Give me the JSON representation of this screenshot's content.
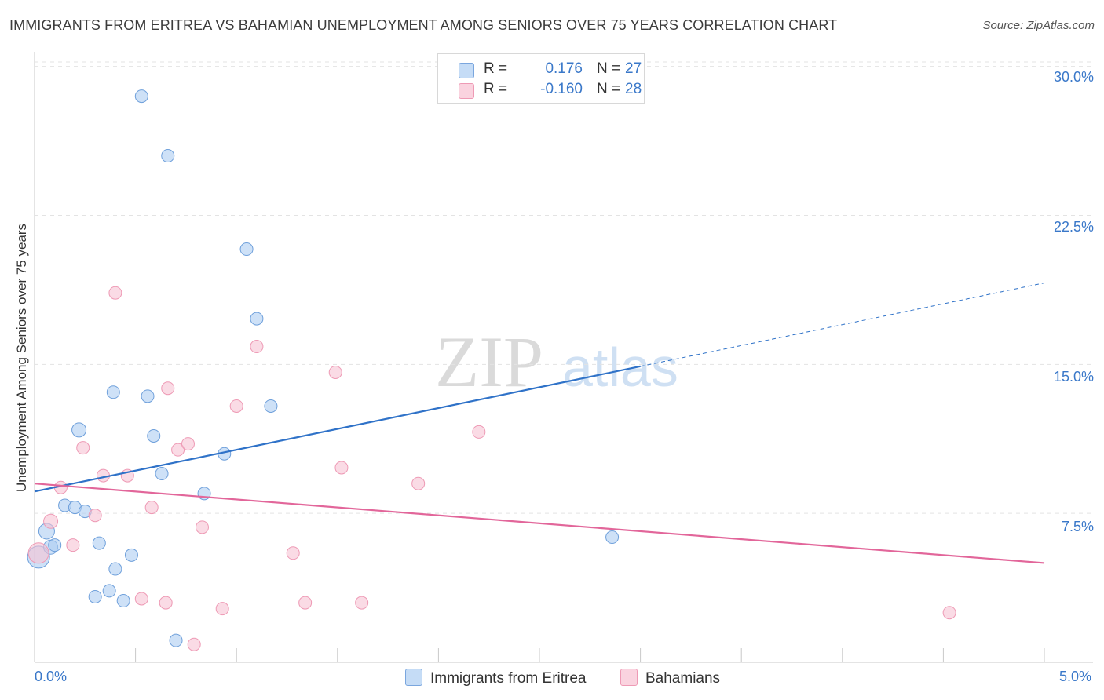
{
  "header": {
    "title": "IMMIGRANTS FROM ERITREA VS BAHAMIAN UNEMPLOYMENT AMONG SENIORS OVER 75 YEARS CORRELATION CHART",
    "source": "Source: ZipAtlas.com"
  },
  "watermark": {
    "zip": "ZIP",
    "atlas": "atlas"
  },
  "legend": {
    "series1": {
      "r_label": "R =",
      "r_value": "0.176",
      "n_label": "N =",
      "n_value": "27",
      "color": "#a8c8f0"
    },
    "series2": {
      "r_label": "R =",
      "r_value": "-0.160",
      "n_label": "N =",
      "n_value": "28",
      "color": "#f5b8cc"
    }
  },
  "bottom_legend": {
    "series1": "Immigrants from Eritrea",
    "series2": "Bahamians"
  },
  "colors": {
    "blue_fill": "#aecdf2",
    "blue_stroke": "#6fa0db",
    "blue_line": "#2f72c8",
    "pink_fill": "#f7c3d3",
    "pink_stroke": "#ee9ab5",
    "pink_line": "#e2669a",
    "grid": "#e3e3e3",
    "axis_text": "#3a78c9"
  },
  "chart_data": {
    "type": "scatter",
    "title": "IMMIGRANTS FROM ERITREA VS BAHAMIAN UNEMPLOYMENT AMONG SENIORS OVER 75 YEARS CORRELATION CHART",
    "xlabel": "",
    "ylabel": "Unemployment Among Seniors over 75 years",
    "xlim": [
      0,
      5
    ],
    "ylim": [
      0,
      30.5
    ],
    "x_tick_labels": {
      "min": "0.0%",
      "max": "5.0%"
    },
    "y_ticks": [
      {
        "value": 7.5,
        "label": "7.5%"
      },
      {
        "value": 15,
        "label": "15.0%"
      },
      {
        "value": 22.5,
        "label": "22.5%"
      },
      {
        "value": 30,
        "label": "30.0%"
      }
    ],
    "series": [
      {
        "name": "Immigrants from Eritrea",
        "points": [
          [
            0.02,
            5.3,
            14
          ],
          [
            0.06,
            6.6,
            10
          ],
          [
            0.08,
            5.8,
            9
          ],
          [
            0.1,
            5.9,
            8
          ],
          [
            0.15,
            7.9,
            8
          ],
          [
            0.2,
            7.8,
            8
          ],
          [
            0.25,
            7.6,
            8
          ],
          [
            0.3,
            3.3,
            8
          ],
          [
            0.32,
            6.0,
            8
          ],
          [
            0.37,
            3.6,
            8
          ],
          [
            0.4,
            4.7,
            8
          ],
          [
            0.44,
            3.1,
            8
          ],
          [
            0.48,
            5.4,
            8
          ],
          [
            0.22,
            11.7,
            9
          ],
          [
            0.39,
            13.6,
            8
          ],
          [
            0.56,
            13.4,
            8
          ],
          [
            0.59,
            11.4,
            8
          ],
          [
            0.63,
            9.5,
            8
          ],
          [
            0.7,
            1.1,
            8
          ],
          [
            0.84,
            8.5,
            8
          ],
          [
            0.94,
            10.5,
            8
          ],
          [
            0.53,
            28.5,
            8
          ],
          [
            0.66,
            25.5,
            8
          ],
          [
            1.05,
            20.8,
            8
          ],
          [
            1.1,
            17.3,
            8
          ],
          [
            1.17,
            12.9,
            8
          ],
          [
            2.86,
            6.3,
            8
          ]
        ],
        "trend": {
          "x0": 0,
          "y0": 8.6,
          "x1": 3.0,
          "y1": 14.9,
          "dash_x1": 5.0,
          "dash_y1": 19.1
        }
      },
      {
        "name": "Bahamians",
        "points": [
          [
            0.02,
            5.5,
            13
          ],
          [
            0.08,
            7.1,
            9
          ],
          [
            0.13,
            8.8,
            8
          ],
          [
            0.19,
            5.9,
            8
          ],
          [
            0.24,
            10.8,
            8
          ],
          [
            0.3,
            7.4,
            8
          ],
          [
            0.34,
            9.4,
            8
          ],
          [
            0.4,
            18.6,
            8
          ],
          [
            0.46,
            9.4,
            8
          ],
          [
            0.53,
            3.2,
            8
          ],
          [
            0.58,
            7.8,
            8
          ],
          [
            0.65,
            3.0,
            8
          ],
          [
            0.66,
            13.8,
            8
          ],
          [
            0.71,
            10.7,
            8
          ],
          [
            0.76,
            11.0,
            8
          ],
          [
            0.79,
            0.9,
            8
          ],
          [
            0.83,
            6.8,
            8
          ],
          [
            0.93,
            2.7,
            8
          ],
          [
            1.0,
            12.9,
            8
          ],
          [
            1.1,
            15.9,
            8
          ],
          [
            1.28,
            5.5,
            8
          ],
          [
            1.34,
            3.0,
            8
          ],
          [
            1.49,
            14.6,
            8
          ],
          [
            1.52,
            9.8,
            8
          ],
          [
            1.62,
            3.0,
            8
          ],
          [
            1.9,
            9.0,
            8
          ],
          [
            2.2,
            11.6,
            8
          ],
          [
            4.53,
            2.5,
            8
          ]
        ],
        "trend": {
          "x0": 0,
          "y0": 9.0,
          "x1": 5.0,
          "y1": 5.0
        }
      }
    ]
  }
}
